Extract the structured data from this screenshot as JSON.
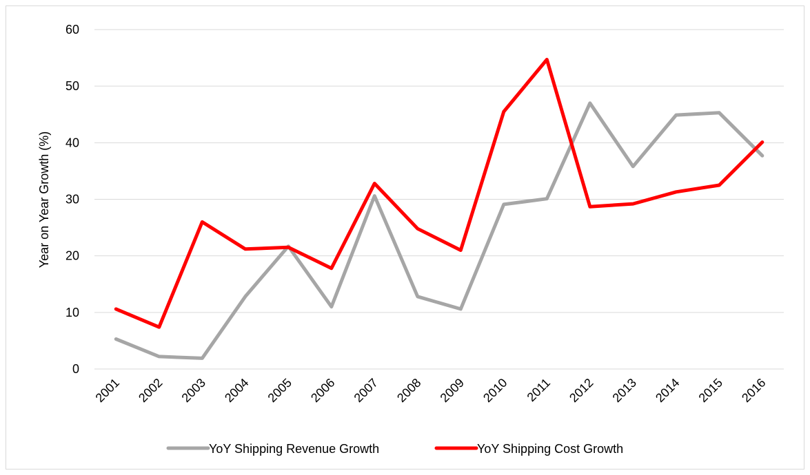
{
  "chart_data": {
    "type": "line",
    "title": "",
    "xlabel": "",
    "ylabel": "Year on Year Growth (%)",
    "ylim": [
      0,
      60
    ],
    "yticks": [
      0,
      10,
      20,
      30,
      40,
      50,
      60
    ],
    "grid": "horizontal",
    "legend_position": "bottom",
    "categories": [
      "2001",
      "2002",
      "2003",
      "2004",
      "2005",
      "2006",
      "2007",
      "2008",
      "2009",
      "2010",
      "2011",
      "2012",
      "2013",
      "2014",
      "2015",
      "2016"
    ],
    "series": [
      {
        "name": "YoY Shipping Revenue Growth",
        "color": "#a6a6a6",
        "values": [
          5.3,
          2.2,
          1.9,
          12.8,
          21.7,
          11.0,
          30.6,
          12.8,
          10.6,
          29.1,
          30.1,
          47.0,
          35.8,
          44.9,
          45.3,
          37.7
        ]
      },
      {
        "name": "YoY Shipping Cost Growth",
        "color": "#ff0000",
        "values": [
          10.6,
          7.4,
          26.0,
          21.2,
          21.5,
          17.8,
          32.8,
          24.8,
          21.0,
          45.5,
          54.7,
          28.7,
          29.2,
          31.3,
          32.5,
          40.1
        ]
      }
    ]
  }
}
